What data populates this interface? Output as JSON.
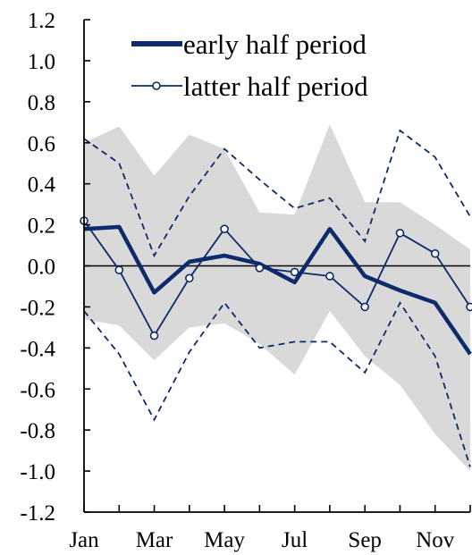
{
  "chart_data": {
    "type": "line",
    "title": "",
    "xlabel": "",
    "ylabel": "",
    "months": 12,
    "x_tick_labels": [
      "Jan",
      "Mar",
      "May",
      "Jul",
      "Sep",
      "Nov"
    ],
    "y_tick_labels": [
      "1.2",
      "1.0",
      "0.8",
      "0.6",
      "0.4",
      "0.2",
      "0.0",
      "-0.2",
      "-0.4",
      "-0.6",
      "-0.8",
      "-1.0",
      "-1.2"
    ],
    "ylim": [
      -1.2,
      1.2
    ],
    "grid": false,
    "legend_position": "top-right",
    "series": [
      {
        "name": "early half period",
        "style": "thick solid",
        "color": "#0d2a6b",
        "values": [
          0.18,
          0.19,
          -0.13,
          0.02,
          0.05,
          0.01,
          -0.08,
          0.18,
          -0.05,
          -0.12,
          -0.18,
          -0.43
        ]
      },
      {
        "name": "latter half period",
        "style": "thin solid with open circle markers",
        "color": "#0d2a6b",
        "values": [
          0.22,
          -0.02,
          -0.34,
          -0.06,
          0.18,
          -0.01,
          -0.03,
          -0.05,
          -0.2,
          0.16,
          0.06,
          -0.2
        ]
      }
    ],
    "confidence_band_latter": {
      "color": "#0d2a6b",
      "style": "dashed",
      "upper": [
        0.62,
        0.5,
        0.05,
        0.34,
        0.57,
        0.42,
        0.28,
        0.33,
        0.12,
        0.66,
        0.53,
        0.24
      ],
      "lower": [
        -0.22,
        -0.43,
        -0.75,
        -0.42,
        -0.18,
        -0.4,
        -0.37,
        -0.37,
        -0.52,
        -0.18,
        -0.44,
        -0.98
      ]
    },
    "confidence_band_early": {
      "color": "#d9d9d9",
      "style": "shaded",
      "upper": [
        0.6,
        0.68,
        0.44,
        0.64,
        0.57,
        0.26,
        0.25,
        0.69,
        0.31,
        0.31,
        0.2,
        0.08
      ],
      "lower": [
        -0.26,
        -0.29,
        -0.46,
        -0.3,
        -0.28,
        -0.38,
        -0.53,
        -0.22,
        -0.44,
        -0.58,
        -0.82,
        -1.0
      ]
    },
    "zero_line": 0.0
  }
}
